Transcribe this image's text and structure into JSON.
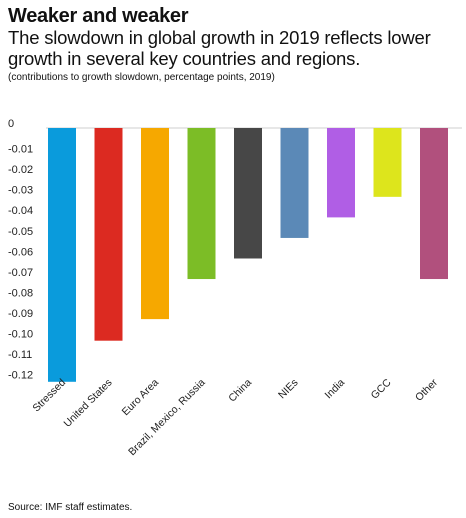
{
  "header": {
    "title": "Weaker and weaker",
    "subtitle": "The slowdown in global growth in 2019 reflects lower growth in several key countries and regions.",
    "note": "(contributions to growth slowdown, percentage points, 2019)"
  },
  "footer": {
    "source": "Source: IMF staff estimates."
  },
  "chart_data": {
    "type": "bar",
    "title": "Weaker and weaker",
    "subtitle": "The slowdown in global growth in 2019 reflects lower growth in several key countries and regions.",
    "xlabel": "",
    "ylabel": "",
    "ylim": [
      -0.125,
      0
    ],
    "yticks": [
      0,
      -0.01,
      -0.02,
      -0.03,
      -0.04,
      -0.05,
      -0.06,
      -0.07,
      -0.08,
      -0.09,
      -0.1,
      -0.11,
      -0.12
    ],
    "ytick_labels": [
      "0",
      "-0.01",
      "-0.02",
      "-0.03",
      "-0.04",
      "-0.05",
      "-0.06",
      "-0.07",
      "-0.08",
      "-0.09",
      "-0.10",
      "-0.11",
      "-0.12"
    ],
    "grid": false,
    "categories": [
      "Stressed",
      "United States",
      "Euro Area",
      "Brazil, Mexico, Russia",
      "China",
      "NIEs",
      "India",
      "GCC",
      "Other"
    ],
    "values": [
      -0.1235,
      -0.1035,
      -0.093,
      -0.0735,
      -0.0635,
      -0.0535,
      -0.0435,
      -0.0335,
      -0.0735
    ],
    "colors": [
      "#0a9bdc",
      "#dc2a21",
      "#f6a800",
      "#7cbd26",
      "#474747",
      "#5b89b7",
      "#b05ee5",
      "#dde51c",
      "#b1507d"
    ]
  }
}
